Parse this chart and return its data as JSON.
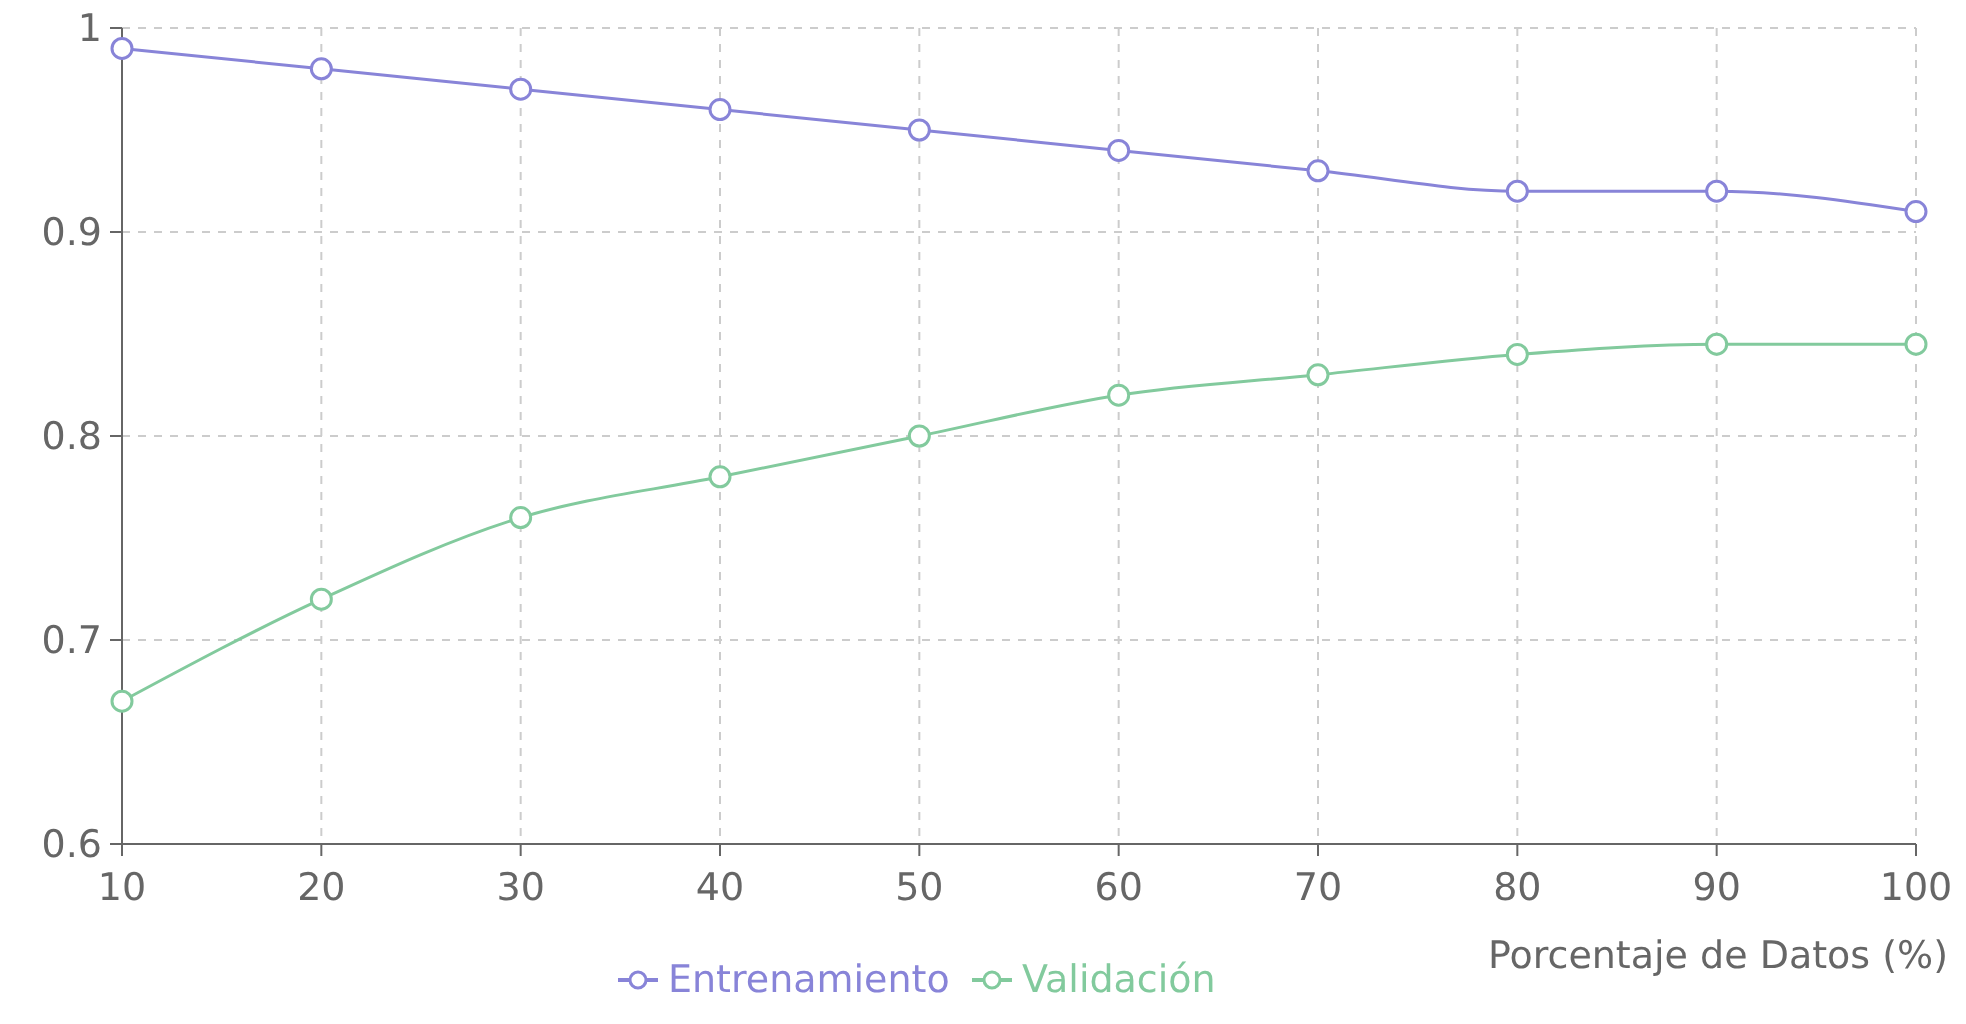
{
  "chart_data": {
    "type": "line",
    "xlabel": "Porcentaje de Datos (%)",
    "x": [
      10,
      20,
      30,
      40,
      50,
      60,
      70,
      80,
      90,
      100
    ],
    "series": [
      {
        "name": "Entrenamiento",
        "color": "#8884d8",
        "values": [
          0.99,
          0.98,
          0.97,
          0.96,
          0.95,
          0.94,
          0.93,
          0.92,
          0.92,
          0.91
        ]
      },
      {
        "name": "Validación",
        "color": "#82ca9d",
        "values": [
          0.67,
          0.72,
          0.76,
          0.78,
          0.8,
          0.82,
          0.83,
          0.84,
          0.845,
          0.845
        ]
      }
    ],
    "xlim": [
      10,
      100
    ],
    "xticks": [
      10,
      20,
      30,
      40,
      50,
      60,
      70,
      80,
      90,
      100
    ],
    "ylim": [
      0.6,
      1
    ],
    "yticks": [
      0.6,
      0.7,
      0.8,
      0.9,
      1
    ],
    "grid": true,
    "legend": "bottom",
    "marker": "circle",
    "line_style": "solid"
  }
}
